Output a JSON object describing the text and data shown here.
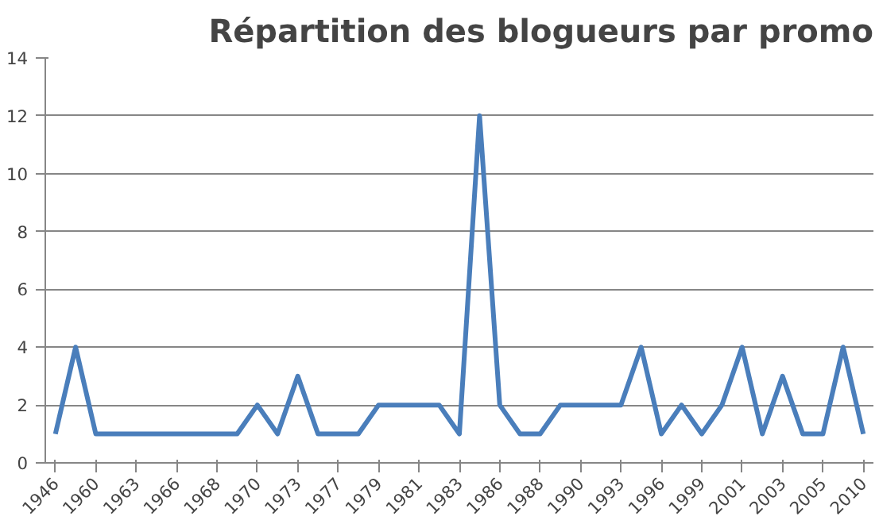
{
  "chart_data": {
    "type": "line",
    "title": "Répartition des blogueurs par promo",
    "categories": [
      "1946",
      null,
      "1960",
      null,
      "1963",
      null,
      "1966",
      null,
      "1968",
      null,
      "1970",
      null,
      "1973",
      null,
      "1977",
      null,
      "1979",
      null,
      "1981",
      null,
      "1983",
      null,
      "1986",
      null,
      "1988",
      null,
      "1990",
      null,
      "1993",
      null,
      "1996",
      null,
      "1999",
      null,
      "2001",
      null,
      "2003",
      null,
      "2005",
      null,
      "2010"
    ],
    "series": [
      {
        "color": "#4a7ebb",
        "values": [
          1,
          4,
          1,
          1,
          1,
          1,
          1,
          1,
          1,
          1,
          2,
          1,
          3,
          1,
          1,
          1,
          2,
          2,
          2,
          2,
          1,
          12,
          2,
          1,
          1,
          2,
          2,
          2,
          2,
          4,
          1,
          2,
          1,
          2,
          4,
          1,
          3,
          1,
          1,
          4,
          1
        ]
      }
    ],
    "ylim": [
      0,
      14
    ],
    "yticks": [
      0,
      2,
      4,
      6,
      8,
      10,
      12,
      14
    ],
    "grid": "y",
    "marker": "none",
    "line_style": "solid"
  }
}
